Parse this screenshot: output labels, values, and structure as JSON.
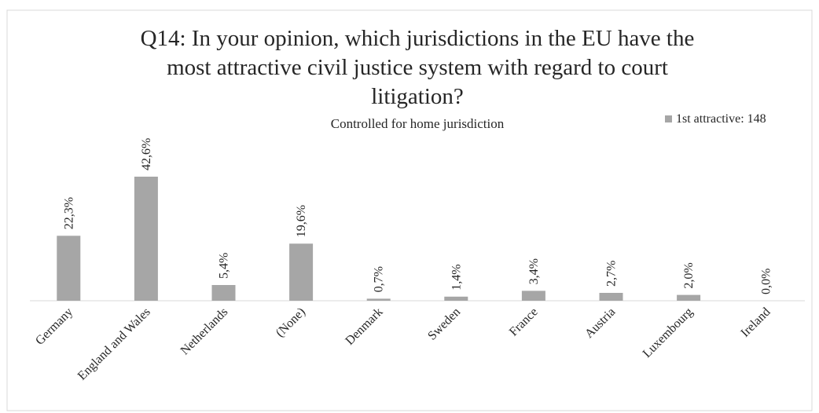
{
  "chart_data": {
    "type": "bar",
    "title_lines": [
      "Q14: In your opinion, which jurisdictions in the EU have the",
      "most attractive civil justice system with regard to court",
      "litigation?"
    ],
    "subtitle": "Controlled for home jurisdiction",
    "xlabel": "",
    "ylabel": "",
    "ylim": [
      0,
      50
    ],
    "grid": false,
    "legend": {
      "position": "top-right"
    },
    "categories": [
      "Germany",
      "England and Wales",
      "Netherlands",
      "(None)",
      "Denmark",
      "Sweden",
      "France",
      "Austria",
      "Luxembourg",
      "Ireland"
    ],
    "series": [
      {
        "name": "1st attractive: 148",
        "color": "#a6a6a6",
        "values": [
          22.3,
          42.6,
          5.4,
          19.6,
          0.7,
          1.4,
          3.4,
          2.7,
          2.0,
          0.0
        ],
        "labels": [
          "22,3%",
          "42,6%",
          "5,4%",
          "19,6%",
          "0,7%",
          "1,4%",
          "3,4%",
          "2,7%",
          "2,0%",
          "0,0%"
        ]
      }
    ]
  }
}
